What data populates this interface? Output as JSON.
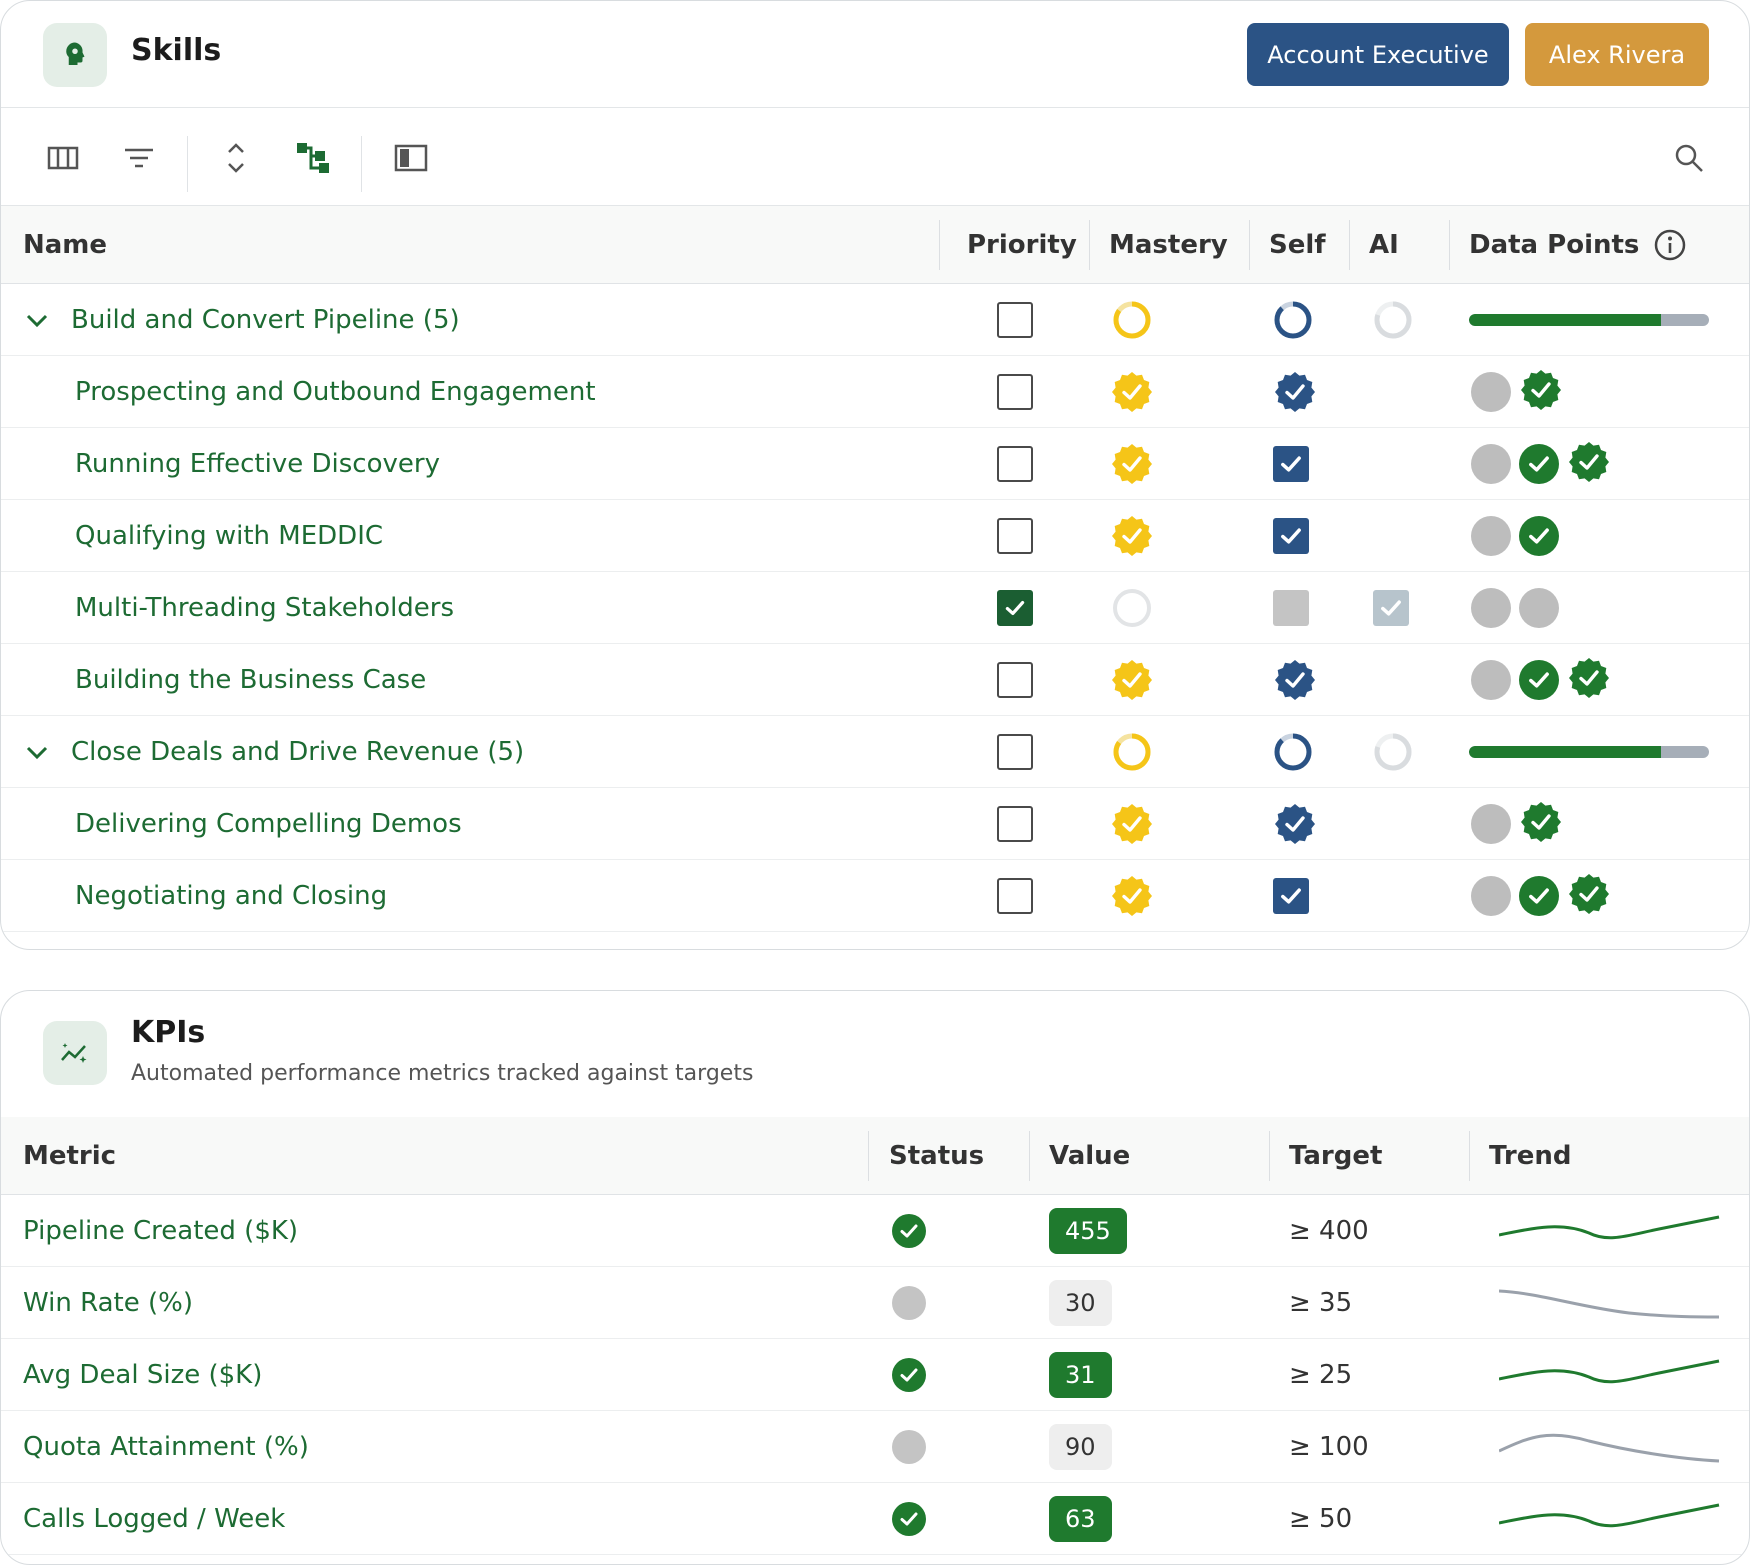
{
  "skills": {
    "title": "Skills",
    "role_label": "Account Executive",
    "user_label": "Alex Rivera",
    "columns": {
      "name": "Name",
      "priority": "Priority",
      "mastery": "Mastery",
      "self": "Self",
      "ai": "AI",
      "data_points": "Data Points"
    },
    "groups": [
      {
        "label": "Build and Convert Pipeline (5)",
        "progress": 0.8,
        "items": [
          {
            "label": "Prospecting and Outbound Engagement",
            "priority": false,
            "mastery": "badge",
            "self": "badge",
            "ai": "none",
            "points": [
              "gray",
              "badge"
            ]
          },
          {
            "label": "Running Effective Discovery",
            "priority": false,
            "mastery": "badge",
            "self": "check",
            "ai": "none",
            "points": [
              "gray",
              "check",
              "badge"
            ]
          },
          {
            "label": "Qualifying with MEDDIC",
            "priority": false,
            "mastery": "badge",
            "self": "check",
            "ai": "none",
            "points": [
              "gray",
              "check"
            ]
          },
          {
            "label": "Multi-Threading Stakeholders",
            "priority": true,
            "mastery": "empty",
            "self": "square",
            "ai": "check-light",
            "points": [
              "gray",
              "gray"
            ]
          },
          {
            "label": "Building the Business Case",
            "priority": false,
            "mastery": "badge",
            "self": "badge",
            "ai": "none",
            "points": [
              "gray",
              "check",
              "badge"
            ]
          }
        ]
      },
      {
        "label": "Close Deals and Drive Revenue (5)",
        "progress": 0.8,
        "items": [
          {
            "label": "Delivering Compelling Demos",
            "priority": false,
            "mastery": "badge",
            "self": "badge",
            "ai": "none",
            "points": [
              "gray",
              "badge"
            ]
          },
          {
            "label": "Negotiating and Closing",
            "priority": false,
            "mastery": "badge",
            "self": "check",
            "ai": "none",
            "points": [
              "gray",
              "check",
              "badge"
            ]
          }
        ]
      }
    ]
  },
  "kpis": {
    "title": "KPIs",
    "subtitle": "Automated performance metrics tracked against targets",
    "columns": {
      "metric": "Metric",
      "status": "Status",
      "value": "Value",
      "target": "Target",
      "trend": "Trend"
    },
    "rows": [
      {
        "metric": "Pipeline Created ($K)",
        "met": true,
        "value": "455",
        "target": "≥ 400",
        "trend": "up"
      },
      {
        "metric": "Win Rate (%)",
        "met": false,
        "value": "30",
        "target": "≥ 35",
        "trend": "down"
      },
      {
        "metric": "Avg Deal Size ($K)",
        "met": true,
        "value": "31",
        "target": "≥ 25",
        "trend": "up"
      },
      {
        "metric": "Quota Attainment (%)",
        "met": false,
        "value": "90",
        "target": "≥ 100",
        "trend": "down"
      },
      {
        "metric": "Calls Logged / Week",
        "met": true,
        "value": "63",
        "target": "≥ 50",
        "trend": "up"
      }
    ]
  },
  "colors": {
    "brand_green": "#1f7a2e",
    "role_blue": "#2b5385",
    "user_gold": "#d4993d",
    "mastery_yellow": "#f5c518"
  }
}
